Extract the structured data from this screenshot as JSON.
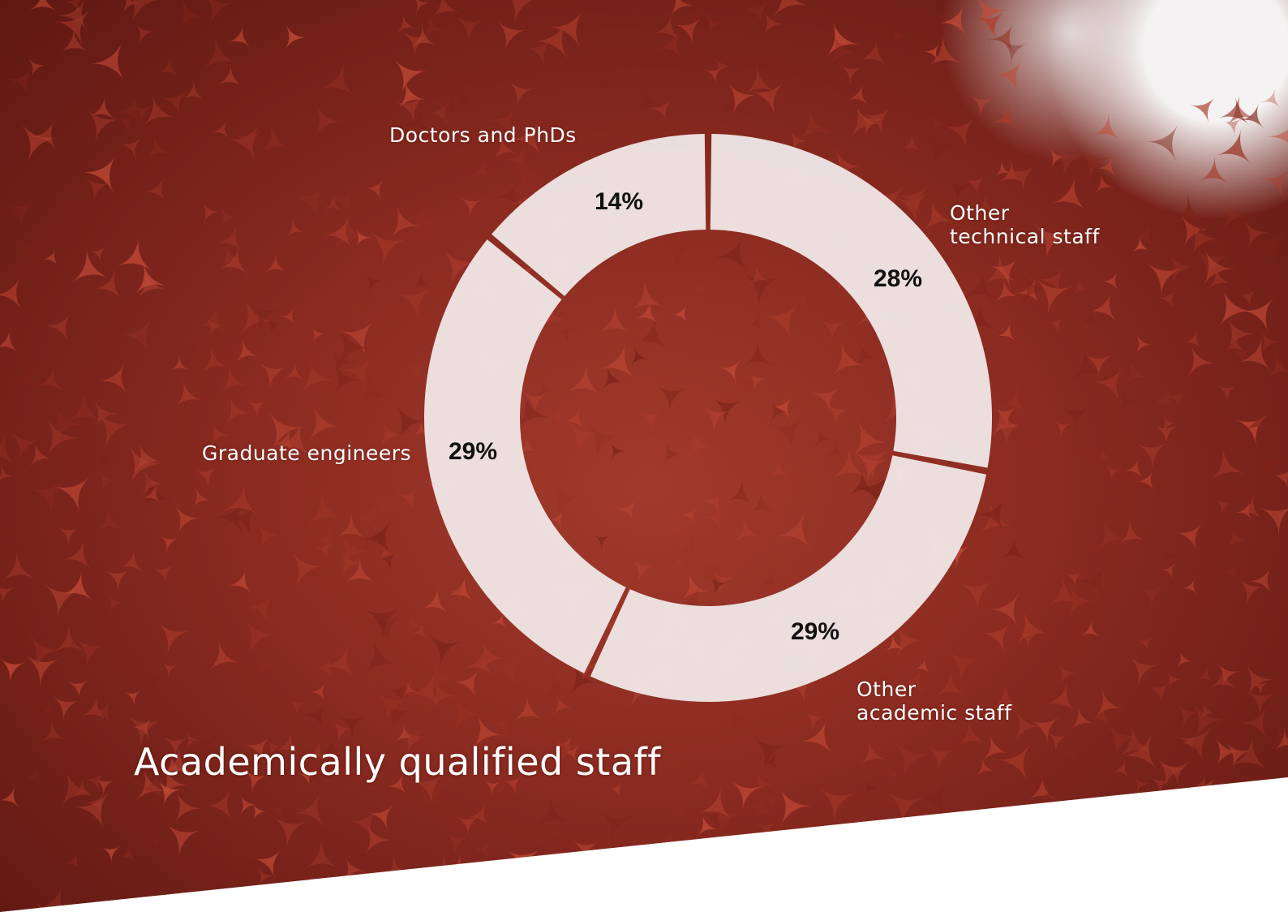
{
  "colors": {
    "background": "#8a2a20",
    "ring": "#f2ecec",
    "label_text": "#ffffff",
    "value_text": "#111111",
    "page": "#ffffff"
  },
  "chart_data": {
    "type": "pie",
    "title": "Academically qualified staff",
    "donut": true,
    "start": "top",
    "direction": "clockwise",
    "categories": [
      "Other technical staff",
      "Other academic staff",
      "Graduate engineers",
      "Doctors and PhDs"
    ],
    "values": [
      28,
      29,
      29,
      14
    ],
    "unit": "%",
    "slices": [
      {
        "label": "Other\ntechnical staff",
        "value": 28,
        "value_label": "28%"
      },
      {
        "label": "Other\nacademic staff",
        "value": 29,
        "value_label": "29%"
      },
      {
        "label": "Graduate engineers",
        "value": 29,
        "value_label": "29%"
      },
      {
        "label": "Doctors and PhDs",
        "value": 14,
        "value_label": "14%"
      }
    ]
  }
}
